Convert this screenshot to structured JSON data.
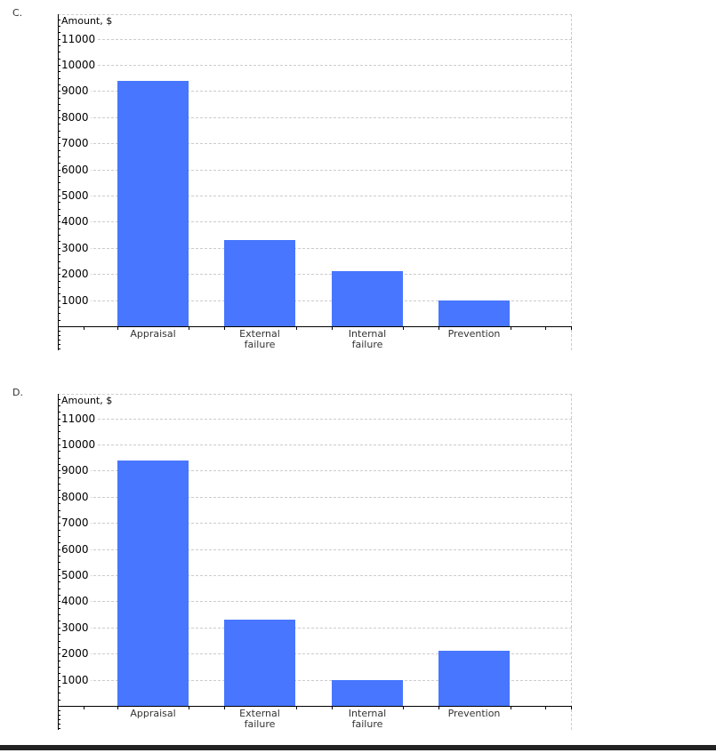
{
  "chart_data": [
    {
      "panel_label": "C.",
      "type": "bar",
      "title": "",
      "xlabel": "",
      "ylabel": "Amount, $",
      "ylim": [
        0,
        11500
      ],
      "yticks": [
        1000,
        2000,
        3000,
        4000,
        5000,
        6000,
        7000,
        8000,
        9000,
        10000,
        11000
      ],
      "grid": true,
      "bar_color": "#4876ff",
      "categories": [
        "Appraisal",
        "External\nfailure",
        "Internal\nfailure",
        "Prevention"
      ],
      "values": [
        9400,
        3300,
        2100,
        1000
      ]
    },
    {
      "panel_label": "D.",
      "type": "bar",
      "title": "",
      "xlabel": "",
      "ylabel": "Amount, $",
      "ylim": [
        0,
        11500
      ],
      "yticks": [
        1000,
        2000,
        3000,
        4000,
        5000,
        6000,
        7000,
        8000,
        9000,
        10000,
        11000
      ],
      "grid": true,
      "bar_color": "#4876ff",
      "categories": [
        "Appraisal",
        "External\nfailure",
        "Internal\nfailure",
        "Prevention"
      ],
      "values": [
        9400,
        3300,
        1000,
        2100
      ]
    }
  ]
}
